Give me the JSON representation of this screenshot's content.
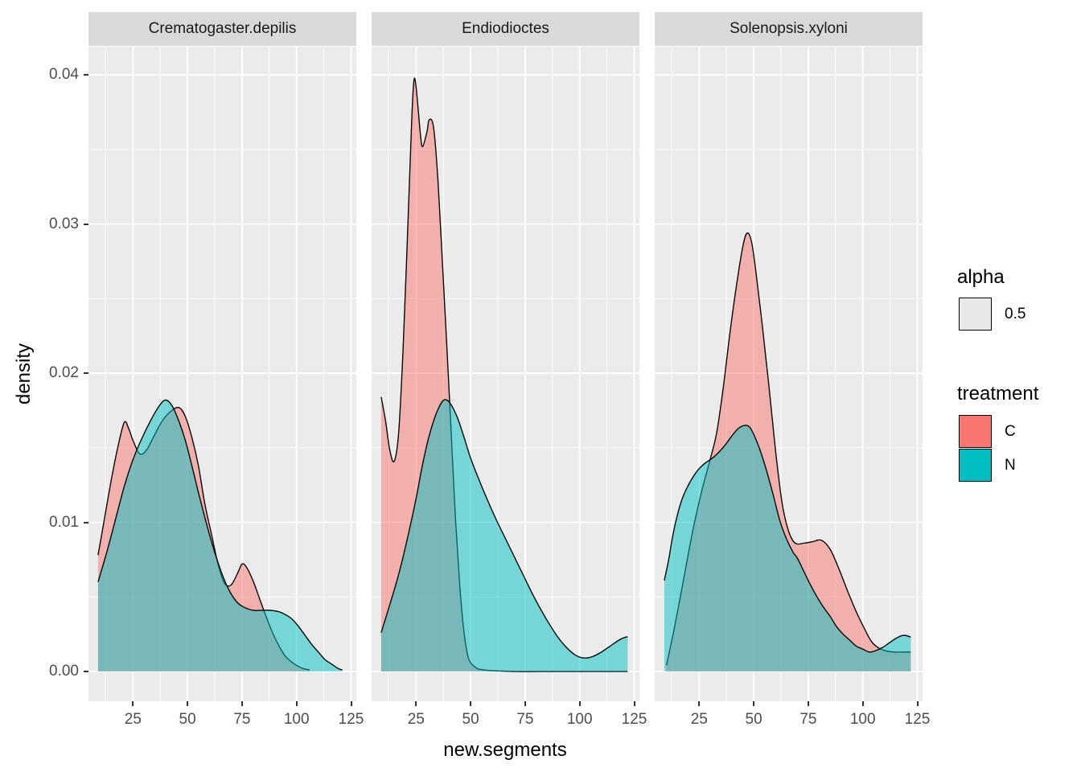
{
  "chart_data": {
    "type": "area",
    "subtype": "kernel-density",
    "x_axis": {
      "label": "new.segments",
      "ticks": [
        25,
        50,
        75,
        100,
        125
      ],
      "minor_ticks": [
        12.5,
        37.5,
        62.5,
        87.5,
        112.5
      ],
      "domain": [
        4.6,
        127.4
      ],
      "grid": true
    },
    "y_axis": {
      "label": "density",
      "ticks": [
        0.0,
        0.01,
        0.02,
        0.03,
        0.04
      ],
      "tick_labels": [
        "0.00",
        "0.01",
        "0.02",
        "0.03",
        "0.04"
      ],
      "minor_ticks": [
        0.005,
        0.015,
        0.025,
        0.035
      ],
      "domain": [
        -0.002,
        0.0419
      ],
      "grid": true
    },
    "panel_background": "#ebebeb",
    "gridline_color": "#ffffff",
    "strip_background": "#d9d9d9",
    "curve_outline_color": "#000000",
    "fill_alpha": 0.5,
    "facets": [
      {
        "label": "Crematogaster.depilis",
        "series": [
          {
            "name": "C",
            "color": "#F8766D",
            "points": [
              [
                9,
                0.0078
              ],
              [
                12,
                0.0103
              ],
              [
                15,
                0.0128
              ],
              [
                18,
                0.015
              ],
              [
                21,
                0.0167
              ],
              [
                23,
                0.0163
              ],
              [
                25,
                0.0155
              ],
              [
                28,
                0.0146
              ],
              [
                31,
                0.0148
              ],
              [
                34,
                0.0156
              ],
              [
                38,
                0.0167
              ],
              [
                42,
                0.0174
              ],
              [
                46,
                0.0177
              ],
              [
                49,
                0.0171
              ],
              [
                52,
                0.0157
              ],
              [
                55,
                0.0138
              ],
              [
                58,
                0.0112
              ],
              [
                61,
                0.0092
              ],
              [
                64,
                0.0072
              ],
              [
                67,
                0.0059
              ],
              [
                70,
                0.0058
              ],
              [
                73,
                0.0066
              ],
              [
                75,
                0.0072
              ],
              [
                77,
                0.007
              ],
              [
                80,
                0.0061
              ],
              [
                83,
                0.0049
              ],
              [
                86,
                0.0037
              ],
              [
                89,
                0.0026
              ],
              [
                92,
                0.0017
              ],
              [
                95,
                0.001
              ],
              [
                99,
                0.0005
              ],
              [
                103,
                0.0002
              ],
              [
                106,
                0.0001
              ]
            ]
          },
          {
            "name": "N",
            "color": "#00BFC4",
            "points": [
              [
                9,
                0.006
              ],
              [
                13,
                0.008
              ],
              [
                17,
                0.0102
              ],
              [
                21,
                0.0124
              ],
              [
                25,
                0.0142
              ],
              [
                29,
                0.0156
              ],
              [
                33,
                0.0168
              ],
              [
                37,
                0.0178
              ],
              [
                40,
                0.0182
              ],
              [
                43,
                0.0178
              ],
              [
                46,
                0.0168
              ],
              [
                49,
                0.0155
              ],
              [
                52,
                0.0138
              ],
              [
                55,
                0.012
              ],
              [
                58,
                0.0103
              ],
              [
                61,
                0.0087
              ],
              [
                64,
                0.0073
              ],
              [
                67,
                0.0061
              ],
              [
                70,
                0.0052
              ],
              [
                73,
                0.0046
              ],
              [
                76,
                0.0043
              ],
              [
                80,
                0.0041
              ],
              [
                84,
                0.0041
              ],
              [
                88,
                0.0041
              ],
              [
                92,
                0.004
              ],
              [
                95,
                0.0038
              ],
              [
                98,
                0.0035
              ],
              [
                101,
                0.003
              ],
              [
                104,
                0.0024
              ],
              [
                107,
                0.0018
              ],
              [
                110,
                0.0013
              ],
              [
                113,
                0.0008
              ],
              [
                116,
                0.0005
              ],
              [
                119,
                0.0002
              ],
              [
                121,
                0.0001
              ]
            ]
          }
        ]
      },
      {
        "label": "Endiodioctes",
        "series": [
          {
            "name": "C",
            "color": "#F8766D",
            "points": [
              [
                9,
                0.0184
              ],
              [
                11,
                0.0168
              ],
              [
                13,
                0.0148
              ],
              [
                15,
                0.0141
              ],
              [
                17,
                0.016
              ],
              [
                19,
                0.0215
              ],
              [
                21,
                0.029
              ],
              [
                23,
                0.037
              ],
              [
                24,
                0.0396
              ],
              [
                25,
                0.0392
              ],
              [
                27,
                0.036
              ],
              [
                28,
                0.0352
              ],
              [
                30,
                0.0362
              ],
              [
                31,
                0.037
              ],
              [
                33,
                0.0365
              ],
              [
                35,
                0.033
              ],
              [
                37,
                0.0276
              ],
              [
                39,
                0.0221
              ],
              [
                41,
                0.0163
              ],
              [
                43,
                0.0104
              ],
              [
                45,
                0.0058
              ],
              [
                47,
                0.0026
              ],
              [
                49,
                0.0009
              ],
              [
                52,
                0.0003
              ],
              [
                56,
                0.0001
              ],
              [
                70,
                0.0
              ],
              [
                90,
                0.0
              ],
              [
                110,
                0.0
              ],
              [
                122,
                0.0
              ]
            ]
          },
          {
            "name": "N",
            "color": "#00BFC4",
            "points": [
              [
                9,
                0.0026
              ],
              [
                13,
                0.0045
              ],
              [
                17,
                0.0065
              ],
              [
                21,
                0.0089
              ],
              [
                25,
                0.0116
              ],
              [
                28,
                0.0139
              ],
              [
                31,
                0.0158
              ],
              [
                34,
                0.0172
              ],
              [
                37,
                0.0181
              ],
              [
                39,
                0.0182
              ],
              [
                41,
                0.0179
              ],
              [
                44,
                0.017
              ],
              [
                47,
                0.0157
              ],
              [
                50,
                0.0143
              ],
              [
                54,
                0.0128
              ],
              [
                58,
                0.0114
              ],
              [
                62,
                0.0101
              ],
              [
                66,
                0.0089
              ],
              [
                70,
                0.0077
              ],
              [
                74,
                0.0065
              ],
              [
                78,
                0.0053
              ],
              [
                82,
                0.0042
              ],
              [
                86,
                0.0032
              ],
              [
                90,
                0.0023
              ],
              [
                94,
                0.0016
              ],
              [
                98,
                0.0011
              ],
              [
                102,
                0.0009
              ],
              [
                106,
                0.001
              ],
              [
                110,
                0.0013
              ],
              [
                114,
                0.0017
              ],
              [
                118,
                0.0021
              ],
              [
                121,
                0.0023
              ],
              [
                122,
                0.0023
              ]
            ]
          }
        ]
      },
      {
        "label": "Solenopsis.xyloni",
        "series": [
          {
            "name": "C",
            "color": "#F8766D",
            "points": [
              [
                10,
                0.0004
              ],
              [
                14,
                0.0032
              ],
              [
                18,
                0.0063
              ],
              [
                22,
                0.0094
              ],
              [
                26,
                0.012
              ],
              [
                30,
                0.0142
              ],
              [
                33,
                0.016
              ],
              [
                36,
                0.019
              ],
              [
                39,
                0.0226
              ],
              [
                42,
                0.0258
              ],
              [
                45,
                0.0285
              ],
              [
                47,
                0.0294
              ],
              [
                49,
                0.0288
              ],
              [
                51,
                0.0268
              ],
              [
                54,
                0.0231
              ],
              [
                57,
                0.0191
              ],
              [
                60,
                0.0148
              ],
              [
                63,
                0.0113
              ],
              [
                66,
                0.0094
              ],
              [
                69,
                0.0086
              ],
              [
                73,
                0.0086
              ],
              [
                77,
                0.0087
              ],
              [
                81,
                0.0088
              ],
              [
                85,
                0.0082
              ],
              [
                89,
                0.0069
              ],
              [
                93,
                0.0054
              ],
              [
                97,
                0.004
              ],
              [
                101,
                0.0028
              ],
              [
                104,
                0.002
              ],
              [
                107,
                0.0016
              ],
              [
                110,
                0.0014
              ],
              [
                114,
                0.0013
              ],
              [
                118,
                0.0013
              ],
              [
                122,
                0.0013
              ]
            ]
          },
          {
            "name": "N",
            "color": "#00BFC4",
            "points": [
              [
                9,
                0.0061
              ],
              [
                11,
                0.0075
              ],
              [
                13,
                0.0092
              ],
              [
                15,
                0.0105
              ],
              [
                17,
                0.0115
              ],
              [
                19,
                0.0122
              ],
              [
                22,
                0.013
              ],
              [
                25,
                0.0136
              ],
              [
                28,
                0.014
              ],
              [
                31,
                0.0143
              ],
              [
                34,
                0.0147
              ],
              [
                37,
                0.0152
              ],
              [
                40,
                0.0158
              ],
              [
                43,
                0.0163
              ],
              [
                46,
                0.0165
              ],
              [
                48,
                0.0164
              ],
              [
                50,
                0.0159
              ],
              [
                53,
                0.0148
              ],
              [
                56,
                0.0134
              ],
              [
                59,
                0.0118
              ],
              [
                62,
                0.0101
              ],
              [
                65,
                0.0089
              ],
              [
                68,
                0.008
              ],
              [
                70,
                0.0076
              ],
              [
                73,
                0.0067
              ],
              [
                76,
                0.0058
              ],
              [
                79,
                0.005
              ],
              [
                82,
                0.0043
              ],
              [
                85,
                0.0037
              ],
              [
                88,
                0.003
              ],
              [
                91,
                0.0025
              ],
              [
                94,
                0.0021
              ],
              [
                97,
                0.0017
              ],
              [
                100,
                0.0015
              ],
              [
                103,
                0.0013
              ],
              [
                106,
                0.0014
              ],
              [
                109,
                0.0016
              ],
              [
                112,
                0.0019
              ],
              [
                115,
                0.0022
              ],
              [
                118,
                0.0024
              ],
              [
                120,
                0.0024
              ],
              [
                122,
                0.0023
              ]
            ]
          }
        ]
      }
    ],
    "legend": {
      "alpha": {
        "title": "alpha",
        "item_label": "0.5",
        "swatch_color": "#e8e8e8"
      },
      "treatment": {
        "title": "treatment",
        "items": [
          {
            "label": "C",
            "color": "#F8766D"
          },
          {
            "label": "N",
            "color": "#00BFC4"
          }
        ]
      }
    }
  }
}
